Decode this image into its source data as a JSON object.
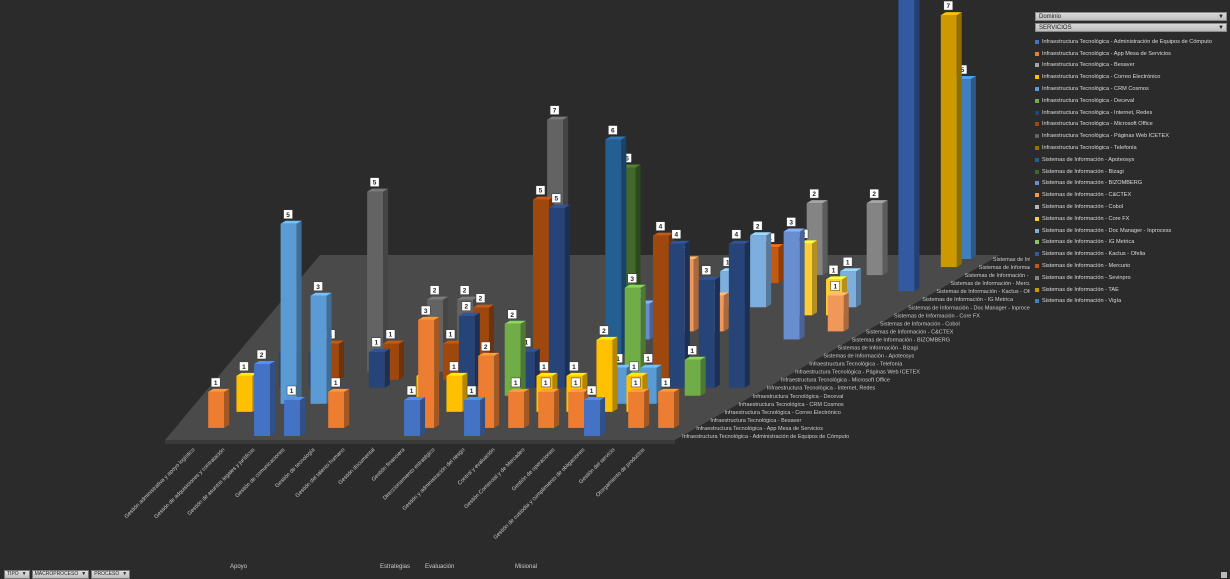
{
  "slicers": {
    "filter1": "Dominio",
    "filter2": "SERVICIOS"
  },
  "field_buttons": [
    "TIPO",
    "MACROPROCESO",
    "PROCESO"
  ],
  "chart_data": {
    "type": "bar",
    "categories": [
      "Gestión administrativa y apoyo logístico",
      "Gestión de adquisiciones y contratación",
      "Gestión de asuntos legales y jurídicos",
      "Gestión de comunicaciones",
      "Gestión de tecnología",
      "Gestión del talento humano",
      "Gestión documental",
      "Gestión financiera",
      "Direccionamiento estratégico",
      "Gestión y administración del riesgo",
      "Control y evaluación",
      "Gestión Comercial y de Mercadeo",
      "Gestión de operaciones",
      "Gestión de custodia y cumplimiento de obligaciones",
      "Gestión del servicio",
      "Otorgamiento de productos"
    ],
    "groups": [
      {
        "label": "Apoyo",
        "from": 0,
        "to": 7
      },
      {
        "label": "Estrategias",
        "from": 8,
        "to": 9
      },
      {
        "label": "Evaluación",
        "from": 10,
        "to": 10
      },
      {
        "label": "Misional",
        "from": 11,
        "to": 15
      }
    ],
    "series": [
      {
        "name": "Infraestructura Tecnológica - Administración de Equipos de Cómputo",
        "color": "#4472c4"
      },
      {
        "name": "Infraestructura Tecnológica - App Mesa de Servicios",
        "color": "#ed7d31"
      },
      {
        "name": "Infraestructura Tecnológica - Besaver",
        "color": "#a5a5a5"
      },
      {
        "name": "Infraestructura Tecnológica - Correo Electrónico",
        "color": "#ffc000"
      },
      {
        "name": "Infraestructura Tecnológica - CRM Cosmos",
        "color": "#5b9bd5"
      },
      {
        "name": "Infraestructura Tecnológica - Deceval",
        "color": "#70ad47"
      },
      {
        "name": "Infraestructura Tecnológica - Internet, Redes",
        "color": "#264478"
      },
      {
        "name": "Infraestructura Tecnológica - Microsoft Office",
        "color": "#9e480e"
      },
      {
        "name": "Infraestructura Tecnológica - Páginas Web ICETEX",
        "color": "#636363"
      },
      {
        "name": "Infraestructura Tecnológica - Telefonía",
        "color": "#997300"
      },
      {
        "name": "Sistemas de Información - Apoteosys",
        "color": "#255e91"
      },
      {
        "name": "Sistemas de Información - Bizagi",
        "color": "#43682b"
      },
      {
        "name": "Sistemas de Información - BIZOMBERG",
        "color": "#698ed0"
      },
      {
        "name": "Sistemas de Información - C&CTEX",
        "color": "#f1975a"
      },
      {
        "name": "Sistemas de Información - Cobol",
        "color": "#b7b7b7"
      },
      {
        "name": "Sistemas de Información - Core FX",
        "color": "#ffcd33"
      },
      {
        "name": "Sistemas de Información - Doc Manager - Inprocess",
        "color": "#7cafdd"
      },
      {
        "name": "Sistemas de Información - IG Metrica",
        "color": "#8cc168"
      },
      {
        "name": "Sistemas de Información - Kactus - Ofelia",
        "color": "#335aa1"
      },
      {
        "name": "Sistemas de Información - Mercurio",
        "color": "#c65911"
      },
      {
        "name": "Sistemas de Información - Sevinpro",
        "color": "#848484"
      },
      {
        "name": "Sistemas de Información - TAE",
        "color": "#cc9a00"
      },
      {
        "name": "Sistemas de Información - Vigía",
        "color": "#3f7fbf"
      }
    ],
    "depth_labels": [
      "Infraestructura Tecnológica - Administración de Equipos de Cómputo",
      "Infraestructura Tecnológica - App Mesa de Servicios",
      "Infraestructura Tecnológica - Besaver",
      "Infraestructura Tecnológica - Correo Electrónico",
      "Infraestructura Tecnológica - CRM Cosmos",
      "Infraestructura Tecnológica - Deceval",
      "Infraestructura Tecnológica - Internet, Redes",
      "Infraestructura Tecnológica - Microsoft Office",
      "Infraestructura Tecnológica - Páginas Web ICETEX",
      "Infraestructura Tecnológica - Telefonía",
      "Sistemas de Información - Apoteosys",
      "Sistemas de Información - Bizagi",
      "Sistemas de Información - BIZOMBERG",
      "Sistemas de Información - C&CTEX",
      "Sistemas de Información - Cobol",
      "Sistemas de Información - Core FX",
      "Sistemas de Información - Doc Manager - Inprocess",
      "Sistemas de Información - IG Metrica",
      "Sistemas de Información - Kactus - Ofelia",
      "Sistemas de Información - Mercurio",
      "Sistemas de Información - Sevinpro",
      "Sistemas de Información - TAE",
      "Sistemas de Información - Vigía"
    ],
    "bars": [
      [
        0,
        1,
        1
      ],
      [
        0,
        3,
        1
      ],
      [
        0,
        6,
        1
      ],
      [
        1,
        4,
        5
      ],
      [
        1,
        6,
        1
      ],
      [
        1,
        7,
        1
      ],
      [
        2,
        0,
        2
      ],
      [
        2,
        4,
        3
      ],
      [
        2,
        8,
        5
      ],
      [
        3,
        0,
        1
      ],
      [
        3,
        6,
        1
      ],
      [
        3,
        7,
        1
      ],
      [
        4,
        1,
        1
      ],
      [
        4,
        8,
        2
      ],
      [
        5,
        7,
        1
      ],
      [
        5,
        8,
        2
      ],
      [
        5,
        9,
        1
      ],
      [
        6,
        3,
        1
      ],
      [
        6,
        6,
        2
      ],
      [
        6,
        7,
        2
      ],
      [
        7,
        0,
        1
      ],
      [
        7,
        1,
        3
      ],
      [
        7,
        3,
        1
      ],
      [
        8,
        5,
        2
      ],
      [
        8,
        6,
        1
      ],
      [
        8,
        7,
        5
      ],
      [
        8,
        8,
        7
      ],
      [
        9,
        0,
        1
      ],
      [
        9,
        1,
        2
      ],
      [
        9,
        6,
        5
      ],
      [
        9,
        10,
        6
      ],
      [
        9,
        11,
        5
      ],
      [
        9,
        12,
        1
      ],
      [
        10,
        1,
        1
      ],
      [
        10,
        3,
        1
      ],
      [
        10,
        13,
        2
      ],
      [
        10,
        16,
        1
      ],
      [
        10,
        19,
        1
      ],
      [
        11,
        1,
        1
      ],
      [
        11,
        3,
        1
      ],
      [
        11,
        13,
        1
      ],
      [
        11,
        16,
        2
      ],
      [
        11,
        20,
        2
      ],
      [
        12,
        1,
        1
      ],
      [
        12,
        3,
        2
      ],
      [
        12,
        4,
        1
      ],
      [
        12,
        5,
        3
      ],
      [
        12,
        7,
        4
      ],
      [
        12,
        8,
        1
      ],
      [
        13,
        0,
        1
      ],
      [
        13,
        3,
        1
      ],
      [
        13,
        4,
        1
      ],
      [
        13,
        6,
        4
      ],
      [
        13,
        15,
        2
      ],
      [
        13,
        20,
        2
      ],
      [
        14,
        1,
        1
      ],
      [
        14,
        5,
        1
      ],
      [
        14,
        6,
        3
      ],
      [
        14,
        12,
        3
      ],
      [
        14,
        15,
        1
      ],
      [
        14,
        16,
        1
      ],
      [
        15,
        1,
        1
      ],
      [
        15,
        6,
        4
      ],
      [
        15,
        13,
        1
      ],
      [
        15,
        18,
        10
      ],
      [
        15,
        21,
        7
      ],
      [
        15,
        22,
        5
      ]
    ],
    "zlim": [
      0,
      10
    ]
  }
}
